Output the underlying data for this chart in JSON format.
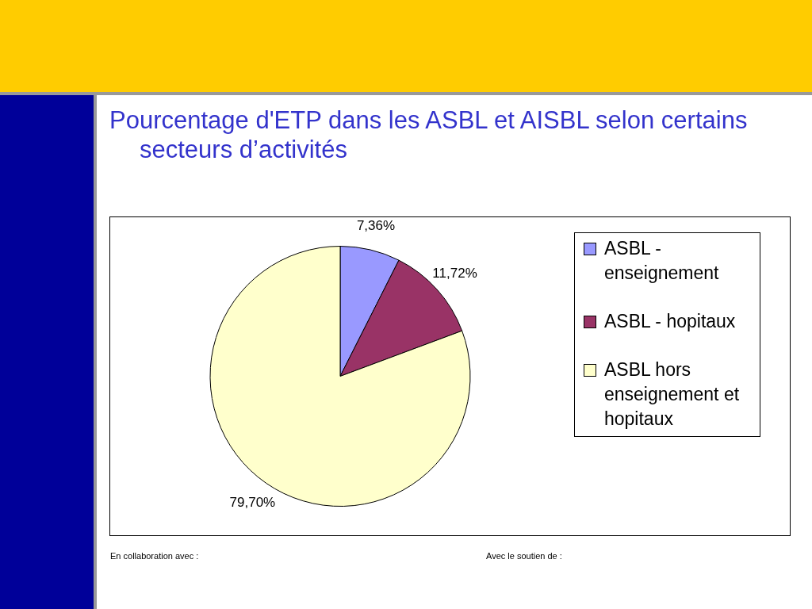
{
  "chart_data": {
    "type": "pie",
    "title": "Pourcentage d'ETP dans les ASBL et AISBL selon certains secteurs d’activités",
    "categories": [
      "ASBL - enseignement",
      "ASBL - hopitaux",
      "ASBL hors enseignement et hopitaux"
    ],
    "values": [
      7.36,
      11.72,
      79.7
    ],
    "colors": [
      "#9999ff",
      "#993366",
      "#ffffcc"
    ],
    "value_labels": [
      "7,36%",
      "11,72%",
      "79,70%"
    ],
    "legend": "right",
    "annotations": [
      "En collaboration avec :",
      "Avec le soutien de :"
    ]
  }
}
